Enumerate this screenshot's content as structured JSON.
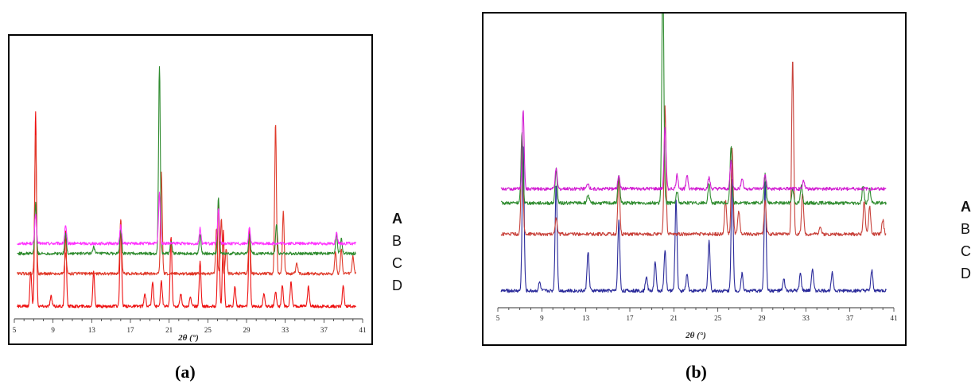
{
  "chart_data": [
    {
      "id": "a",
      "type": "line",
      "xlabel": "2θ (°)",
      "xlim": [
        5,
        41
      ],
      "xticks": [
        5,
        9,
        13,
        17,
        21,
        25,
        29,
        33,
        37,
        41
      ],
      "tick_labels": [
        "5",
        "9",
        "13",
        "17",
        "21",
        "25",
        "29",
        "33",
        "37",
        "41"
      ],
      "legend": [
        "A",
        "B",
        "C",
        "D"
      ],
      "caption": "(a)",
      "series": [
        {
          "legend": "A",
          "color": "#ff33ff",
          "baseline": 0.3,
          "peaks": [
            [
              7.2,
              0.12
            ],
            [
              10.3,
              0.07
            ],
            [
              16.0,
              0.07
            ],
            [
              20.0,
              0.2
            ],
            [
              24.2,
              0.06
            ],
            [
              26.1,
              0.14
            ],
            [
              29.3,
              0.06
            ],
            [
              38.3,
              0.04
            ]
          ]
        },
        {
          "legend": "B",
          "color": "#2e8b2e",
          "baseline": 0.26,
          "peaks": [
            [
              7.2,
              0.2
            ],
            [
              10.3,
              0.08
            ],
            [
              13.2,
              0.03
            ],
            [
              16.0,
              0.1
            ],
            [
              20.0,
              0.75
            ],
            [
              21.2,
              0.05
            ],
            [
              24.2,
              0.08
            ],
            [
              26.1,
              0.22
            ],
            [
              29.3,
              0.08
            ],
            [
              32.1,
              0.12
            ],
            [
              38.3,
              0.08
            ],
            [
              38.8,
              0.06
            ]
          ]
        },
        {
          "legend": "C",
          "color": "#e03a2a",
          "baseline": 0.18,
          "peaks": [
            [
              7.2,
              0.55
            ],
            [
              10.3,
              0.08
            ],
            [
              16.0,
              0.22
            ],
            [
              20.2,
              0.4
            ],
            [
              25.9,
              0.18
            ],
            [
              26.4,
              0.22
            ],
            [
              26.9,
              0.1
            ],
            [
              29.3,
              0.18
            ],
            [
              32.0,
              0.6
            ],
            [
              32.8,
              0.25
            ],
            [
              34.2,
              0.04
            ],
            [
              38.2,
              0.09
            ],
            [
              38.8,
              0.1
            ],
            [
              40.0,
              0.07
            ]
          ]
        },
        {
          "legend": "D",
          "color": "#ee1111",
          "baseline": 0.05,
          "peaks": [
            [
              6.7,
              0.14
            ],
            [
              7.2,
              0.78
            ],
            [
              8.8,
              0.04
            ],
            [
              10.3,
              0.3
            ],
            [
              13.2,
              0.14
            ],
            [
              16.0,
              0.32
            ],
            [
              18.5,
              0.05
            ],
            [
              19.3,
              0.1
            ],
            [
              20.2,
              0.1
            ],
            [
              21.2,
              0.28
            ],
            [
              22.2,
              0.05
            ],
            [
              23.2,
              0.04
            ],
            [
              24.2,
              0.18
            ],
            [
              26.1,
              0.42
            ],
            [
              26.6,
              0.3
            ],
            [
              27.8,
              0.08
            ],
            [
              29.3,
              0.3
            ],
            [
              30.8,
              0.05
            ],
            [
              32.0,
              0.06
            ],
            [
              32.7,
              0.08
            ],
            [
              33.6,
              0.1
            ],
            [
              35.4,
              0.08
            ],
            [
              39.0,
              0.08
            ]
          ]
        }
      ]
    },
    {
      "id": "b",
      "type": "line",
      "xlabel": "2θ (°)",
      "xlim": [
        5,
        41
      ],
      "xticks": [
        5,
        9,
        13,
        17,
        21,
        25,
        29,
        33,
        37,
        41
      ],
      "tick_labels": [
        "5",
        "9",
        "13",
        "17",
        "21",
        "25",
        "29",
        "33",
        "37",
        "41"
      ],
      "legend": [
        "A",
        "B",
        "C",
        "D"
      ],
      "caption": "(b)",
      "series": [
        {
          "legend": "A",
          "color": "#d21dd2",
          "baseline": 0.42,
          "peaks": [
            [
              7.3,
              0.28
            ],
            [
              10.3,
              0.07
            ],
            [
              13.2,
              0.02
            ],
            [
              16.0,
              0.05
            ],
            [
              20.2,
              0.22
            ],
            [
              21.3,
              0.05
            ],
            [
              22.2,
              0.05
            ],
            [
              24.2,
              0.04
            ],
            [
              26.2,
              0.1
            ],
            [
              27.2,
              0.04
            ],
            [
              29.3,
              0.05
            ],
            [
              32.8,
              0.03
            ]
          ]
        },
        {
          "legend": "B",
          "color": "#2e8b2e",
          "baseline": 0.37,
          "peaks": [
            [
              7.2,
              0.25
            ],
            [
              10.3,
              0.12
            ],
            [
              13.2,
              0.03
            ],
            [
              16.0,
              0.1
            ],
            [
              20.0,
              0.82
            ],
            [
              21.3,
              0.04
            ],
            [
              24.2,
              0.07
            ],
            [
              26.2,
              0.2
            ],
            [
              29.3,
              0.1
            ],
            [
              31.8,
              0.05
            ],
            [
              32.6,
              0.06
            ],
            [
              38.2,
              0.06
            ],
            [
              38.8,
              0.05
            ]
          ]
        },
        {
          "legend": "C",
          "color": "#c8413a",
          "baseline": 0.26,
          "peaks": [
            [
              7.2,
              0.35
            ],
            [
              10.3,
              0.06
            ],
            [
              16.0,
              0.2
            ],
            [
              20.2,
              0.45
            ],
            [
              25.7,
              0.12
            ],
            [
              26.3,
              0.3
            ],
            [
              26.9,
              0.08
            ],
            [
              29.3,
              0.12
            ],
            [
              31.8,
              0.62
            ],
            [
              32.7,
              0.15
            ],
            [
              34.3,
              0.03
            ],
            [
              38.3,
              0.12
            ],
            [
              38.8,
              0.1
            ],
            [
              40.0,
              0.05
            ]
          ]
        },
        {
          "legend": "D",
          "color": "#2a2a9a",
          "baseline": 0.06,
          "peaks": [
            [
              7.3,
              0.52
            ],
            [
              8.8,
              0.03
            ],
            [
              10.3,
              0.38
            ],
            [
              13.2,
              0.14
            ],
            [
              16.0,
              0.25
            ],
            [
              18.5,
              0.05
            ],
            [
              19.3,
              0.1
            ],
            [
              20.2,
              0.14
            ],
            [
              21.2,
              0.32
            ],
            [
              22.2,
              0.06
            ],
            [
              24.2,
              0.18
            ],
            [
              26.3,
              0.4
            ],
            [
              27.2,
              0.06
            ],
            [
              29.3,
              0.38
            ],
            [
              31.0,
              0.04
            ],
            [
              32.5,
              0.06
            ],
            [
              33.6,
              0.08
            ],
            [
              35.4,
              0.07
            ],
            [
              39.0,
              0.07
            ]
          ]
        }
      ]
    }
  ]
}
